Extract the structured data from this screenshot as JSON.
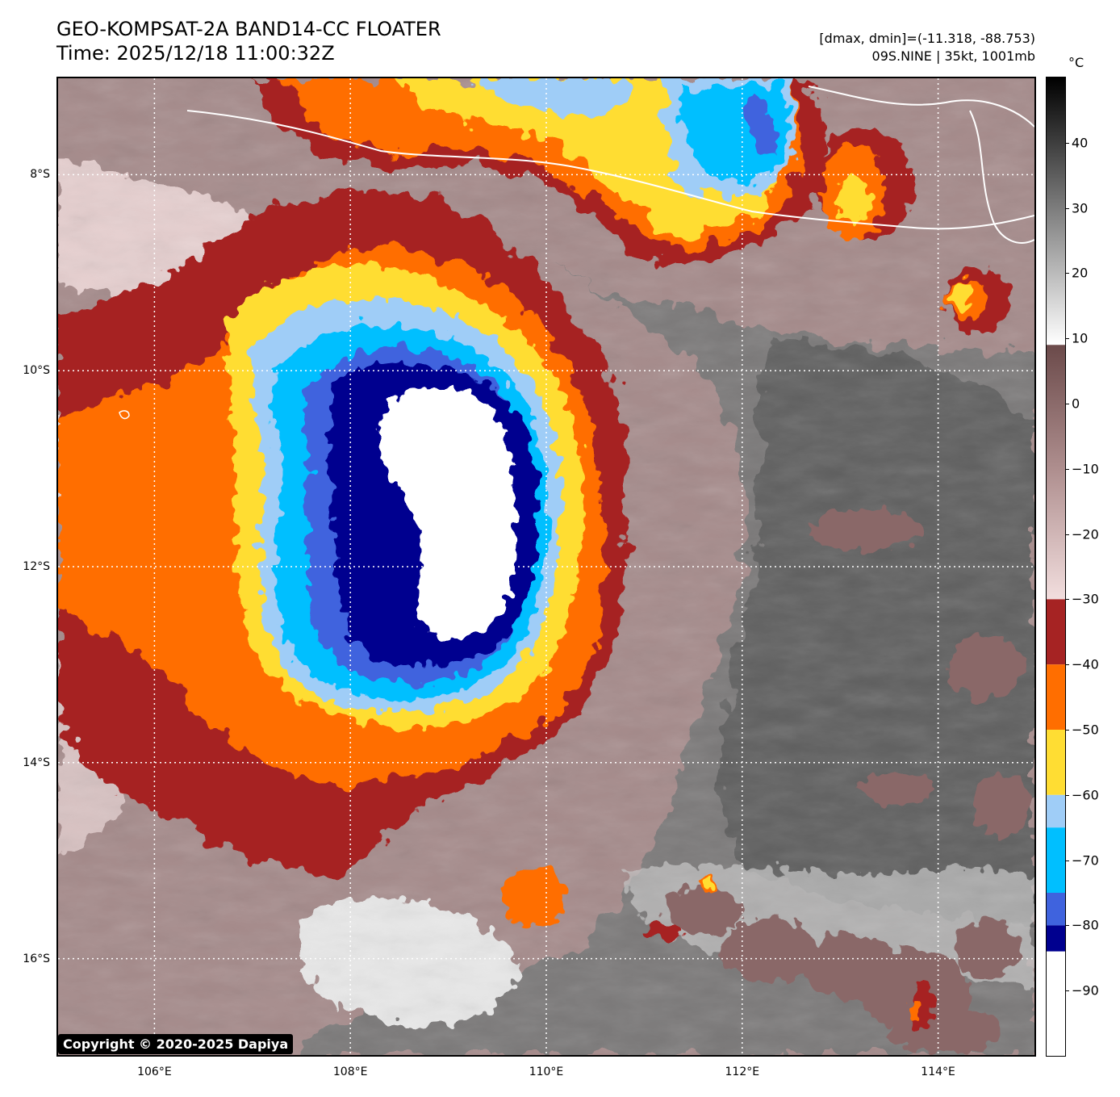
{
  "header": {
    "title_line1": "GEO-KOMPSAT-2A BAND14-CC FLOATER",
    "title_line2": "Time: 2025/12/18 11:00:32Z",
    "range_text": "[dmax, dmin]=(-11.318, -88.753)",
    "storm_text": "09S.NINE | 35kt, 1001mb"
  },
  "map": {
    "lat_labels": [
      {
        "text": "8°S",
        "lat": -8
      },
      {
        "text": "10°S",
        "lat": -10
      },
      {
        "text": "12°S",
        "lat": -12
      },
      {
        "text": "14°S",
        "lat": -14
      },
      {
        "text": "16°S",
        "lat": -16
      }
    ],
    "lon_labels": [
      {
        "text": "106°E",
        "lon": 106
      },
      {
        "text": "108°E",
        "lon": 108
      },
      {
        "text": "110°E",
        "lon": 110
      },
      {
        "text": "112°E",
        "lon": 112
      },
      {
        "text": "114°E",
        "lon": 114
      }
    ],
    "lat_range": [
      -17,
      -7
    ],
    "lon_range": [
      105,
      115
    ]
  },
  "colorbar": {
    "unit": "°C",
    "ticks": [
      "40",
      "30",
      "20",
      "10",
      "0",
      "−10",
      "−20",
      "−30",
      "−40",
      "−50",
      "−60",
      "−70",
      "−80",
      "−90"
    ],
    "tick_values": [
      40,
      30,
      20,
      10,
      0,
      -10,
      -20,
      -30,
      -40,
      -50,
      -60,
      -70,
      -80,
      -90
    ],
    "range": [
      -100,
      50
    ],
    "bands": [
      {
        "from": -30,
        "to": -40,
        "color": "#a62323"
      },
      {
        "from": -40,
        "to": -50,
        "color": "#ff6e00"
      },
      {
        "from": -50,
        "to": -60,
        "color": "#ffdd33"
      },
      {
        "from": -60,
        "to": -65,
        "color": "#9fcdf7"
      },
      {
        "from": -65,
        "to": -75,
        "color": "#00bfff"
      },
      {
        "from": -75,
        "to": -80,
        "color": "#3f63de"
      },
      {
        "from": -80,
        "to": -84,
        "color": "#00008f"
      },
      {
        "from": -84,
        "to": -100,
        "color": "#ffffff"
      }
    ]
  },
  "copyright": "Copyright © 2020-2025 Dapiya"
}
